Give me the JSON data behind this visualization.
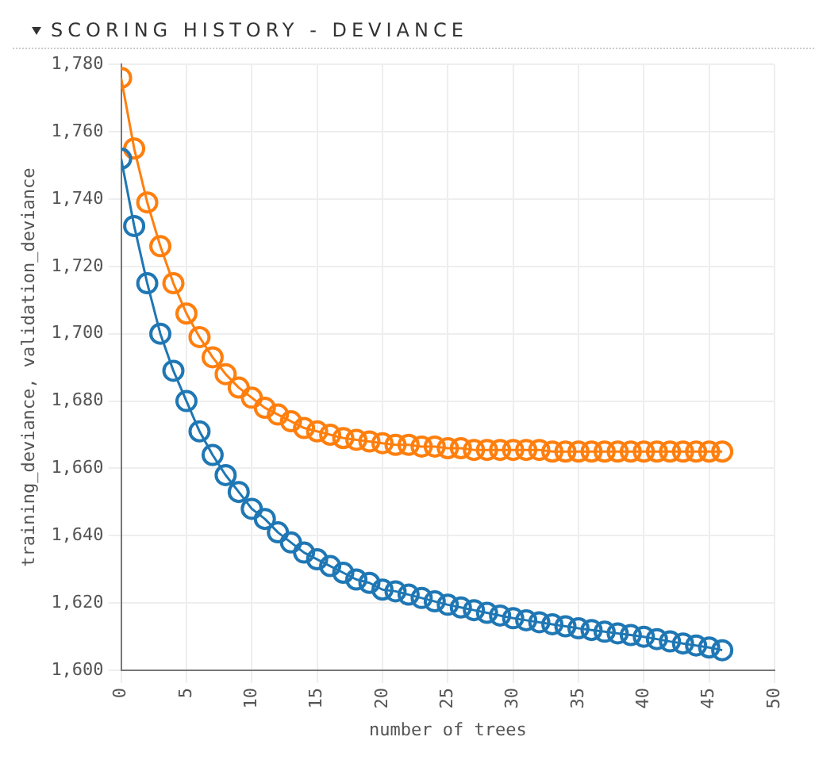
{
  "chart_data": {
    "type": "line",
    "title": "SCORING HISTORY - DEVIANCE",
    "xlabel": "number of trees",
    "ylabel": "training_deviance, validation_deviance",
    "x": [
      0,
      1,
      2,
      3,
      4,
      5,
      6,
      7,
      8,
      9,
      10,
      11,
      12,
      13,
      14,
      15,
      16,
      17,
      18,
      19,
      20,
      21,
      22,
      23,
      24,
      25,
      26,
      27,
      28,
      29,
      30,
      31,
      32,
      33,
      34,
      35,
      36,
      37,
      38,
      39,
      40,
      41,
      42,
      43,
      44,
      45,
      46
    ],
    "series": [
      {
        "color": "#1f77b4",
        "values": [
          1752,
          1732,
          1715,
          1700,
          1689,
          1680,
          1671,
          1664,
          1658,
          1653,
          1648,
          1645,
          1641,
          1638,
          1635,
          1633,
          1631,
          1629,
          1627,
          1626,
          1624,
          1623.5,
          1622.5,
          1621.5,
          1620.5,
          1619.5,
          1618.7,
          1617.9,
          1617.1,
          1616.3,
          1615.5,
          1614.9,
          1614.3,
          1613.7,
          1613.1,
          1612.5,
          1612,
          1611.5,
          1611,
          1610.5,
          1610,
          1609.3,
          1608.6,
          1608,
          1607.4,
          1606.8,
          1606
        ]
      },
      {
        "color": "#ff7f0e",
        "values": [
          1776,
          1755,
          1739,
          1726,
          1715,
          1706,
          1699,
          1693,
          1688,
          1684,
          1681,
          1678,
          1676,
          1674,
          1672,
          1671,
          1670,
          1669,
          1668.5,
          1668,
          1667.5,
          1667,
          1667,
          1666.5,
          1666.5,
          1666,
          1666,
          1665.5,
          1665.5,
          1665.5,
          1665.5,
          1665.5,
          1665.5,
          1665,
          1665,
          1665,
          1665,
          1665,
          1665,
          1665,
          1665,
          1665,
          1665,
          1665,
          1665,
          1665,
          1665
        ]
      }
    ],
    "xlim": [
      0,
      50
    ],
    "xticks": [
      0,
      5,
      10,
      15,
      20,
      25,
      30,
      35,
      40,
      45,
      50
    ],
    "ylim": [
      1600,
      1780
    ],
    "yticks": [
      {
        "value": 1600,
        "label": "1,600"
      },
      {
        "value": 1620,
        "label": "1,620"
      },
      {
        "value": 1640,
        "label": "1,640"
      },
      {
        "value": 1660,
        "label": "1,660"
      },
      {
        "value": 1680,
        "label": "1,680"
      },
      {
        "value": 1700,
        "label": "1,700"
      },
      {
        "value": 1720,
        "label": "1,720"
      },
      {
        "value": 1740,
        "label": "1,740"
      },
      {
        "value": 1760,
        "label": "1,760"
      },
      {
        "value": 1780,
        "label": "1,780"
      }
    ],
    "grid": true,
    "legend": false,
    "marker": "circle",
    "line_style": "solid"
  }
}
